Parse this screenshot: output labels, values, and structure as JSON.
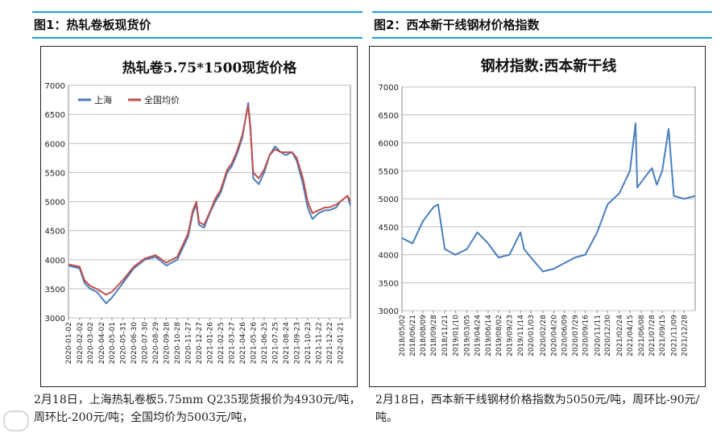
{
  "figures": [
    {
      "label": "图1：热轧卷板现货价",
      "caption": "2月18日，上海热轧卷板5.75mm Q235现货报价为4930元/吨，周环比-200元/吨；全国均价为5003元/吨，"
    },
    {
      "label": "图2：西本新干线钢材价格指数",
      "caption": "2月18日，西本新干线钢材价格指数为5050元/吨，周环比-90元/吨。"
    }
  ],
  "chart_data": [
    {
      "type": "line",
      "title": "热轧卷5.75*1500现货价格",
      "xlabel": "",
      "ylabel": "",
      "ylim": [
        3000,
        7000
      ],
      "yticks": [
        3000,
        3500,
        4000,
        4500,
        5000,
        5500,
        6000,
        6500,
        7000
      ],
      "xticks": [
        "2020-01-02",
        "2020-02-02",
        "2020-03-02",
        "2020-04-02",
        "2020-05-01",
        "2020-05-31",
        "2020-06-30",
        "2020-07-30",
        "2020-08-29",
        "2020-09-28",
        "2020-10-28",
        "2020-11-27",
        "2020-12-27",
        "2021-01-26",
        "2021-02-25",
        "2021-03-27",
        "2021-04-26",
        "2021-05-26",
        "2021-06-25",
        "2021-07-25",
        "2021-08-24",
        "2021-09-23",
        "2021-10-23",
        "2021-11-22",
        "2021-12-22",
        "2022-01-21"
      ],
      "legend": "top-left",
      "grid": "horizontal",
      "series": [
        {
          "name": "上海",
          "color": "#4a7ebb",
          "x": [
            "2020-01-02",
            "2020-02-02",
            "2020-02-15",
            "2020-03-02",
            "2020-03-20",
            "2020-04-02",
            "2020-04-15",
            "2020-05-01",
            "2020-05-31",
            "2020-06-30",
            "2020-07-30",
            "2020-08-29",
            "2020-09-28",
            "2020-10-28",
            "2020-11-27",
            "2020-12-10",
            "2020-12-20",
            "2020-12-27",
            "2021-01-10",
            "2021-01-26",
            "2021-02-10",
            "2021-02-25",
            "2021-03-15",
            "2021-03-27",
            "2021-04-10",
            "2021-04-26",
            "2021-05-12",
            "2021-05-18",
            "2021-05-26",
            "2021-06-10",
            "2021-06-25",
            "2021-07-10",
            "2021-07-25",
            "2021-08-10",
            "2021-08-24",
            "2021-09-10",
            "2021-09-23",
            "2021-10-10",
            "2021-10-23",
            "2021-11-05",
            "2021-11-22",
            "2021-12-10",
            "2021-12-22",
            "2022-01-10",
            "2022-01-21",
            "2022-02-10",
            "2022-02-18"
          ],
          "y": [
            3900,
            3850,
            3600,
            3500,
            3450,
            3350,
            3250,
            3350,
            3600,
            3850,
            4000,
            4050,
            3900,
            4000,
            4400,
            4800,
            4950,
            4600,
            4550,
            4800,
            5000,
            5150,
            5500,
            5600,
            5800,
            6100,
            6700,
            6300,
            5400,
            5300,
            5500,
            5800,
            5950,
            5850,
            5800,
            5850,
            5700,
            5300,
            4900,
            4700,
            4800,
            4850,
            4850,
            4900,
            5000,
            5100,
            4930
          ]
        },
        {
          "name": "全国均价",
          "color": "#c0504d",
          "x": [
            "2020-01-02",
            "2020-02-02",
            "2020-02-15",
            "2020-03-02",
            "2020-03-20",
            "2020-04-02",
            "2020-04-15",
            "2020-05-01",
            "2020-05-31",
            "2020-06-30",
            "2020-07-30",
            "2020-08-29",
            "2020-09-28",
            "2020-10-28",
            "2020-11-27",
            "2020-12-10",
            "2020-12-20",
            "2020-12-27",
            "2021-01-10",
            "2021-01-26",
            "2021-02-10",
            "2021-02-25",
            "2021-03-15",
            "2021-03-27",
            "2021-04-10",
            "2021-04-26",
            "2021-05-12",
            "2021-05-18",
            "2021-05-26",
            "2021-06-10",
            "2021-06-25",
            "2021-07-10",
            "2021-07-25",
            "2021-08-10",
            "2021-08-24",
            "2021-09-10",
            "2021-09-23",
            "2021-10-10",
            "2021-10-23",
            "2021-11-05",
            "2021-11-22",
            "2021-12-10",
            "2021-12-22",
            "2022-01-10",
            "2022-01-21",
            "2022-02-10",
            "2022-02-18"
          ],
          "y": [
            3920,
            3880,
            3650,
            3550,
            3500,
            3450,
            3400,
            3450,
            3650,
            3880,
            4020,
            4080,
            3950,
            4050,
            4450,
            4850,
            5000,
            4650,
            4600,
            4820,
            5050,
            5200,
            5550,
            5650,
            5850,
            6150,
            6650,
            6250,
            5500,
            5400,
            5550,
            5800,
            5900,
            5850,
            5850,
            5850,
            5750,
            5400,
            5000,
            4800,
            4850,
            4900,
            4900,
            4950,
            5000,
            5100,
            5003
          ]
        }
      ]
    },
    {
      "type": "line",
      "title": "钢材指数:西本新干线",
      "xlabel": "",
      "ylabel": "",
      "ylim": [
        3000,
        7000
      ],
      "yticks": [
        3000,
        3500,
        4000,
        4500,
        5000,
        5500,
        6000,
        6500,
        7000
      ],
      "xticks": [
        "2018/05/02",
        "2018/06/21",
        "2018/08/09",
        "2018/09/28",
        "2018/11/21",
        "2019/01/10",
        "2019/03/05",
        "2019/04/24",
        "2019/06/14",
        "2019/08/02",
        "2019/09/23",
        "2019/11/14",
        "2020/01/03",
        "2020/02/28",
        "2020/04/20",
        "2020/06/09",
        "2020/07/29",
        "2020/09/16",
        "2020/11/11",
        "2020/12/30",
        "2021/02/24",
        "2021/04/15",
        "2021/06/08",
        "2021/07/28",
        "2021/09/15",
        "2021/11/09",
        "2021/12/28"
      ],
      "grid": "horizontal",
      "series": [
        {
          "name": "",
          "color": "#4a7ebb",
          "x": [
            "2018/05/02",
            "2018/06/21",
            "2018/08/09",
            "2018/09/28",
            "2018/10/20",
            "2018/11/21",
            "2019/01/10",
            "2019/03/05",
            "2019/04/24",
            "2019/06/14",
            "2019/08/02",
            "2019/09/23",
            "2019/11/14",
            "2019/12/01",
            "2020/01/03",
            "2020/02/28",
            "2020/04/20",
            "2020/06/09",
            "2020/07/29",
            "2020/09/16",
            "2020/11/11",
            "2020/12/30",
            "2021/02/24",
            "2021/04/15",
            "2021/05/12",
            "2021/05/20",
            "2021/06/08",
            "2021/07/28",
            "2021/08/20",
            "2021/09/15",
            "2021/10/15",
            "2021/11/09",
            "2021/12/28",
            "2022/02/18"
          ],
          "y": [
            4300,
            4200,
            4600,
            4850,
            4900,
            4100,
            4000,
            4100,
            4400,
            4200,
            3950,
            4000,
            4400,
            4100,
            3950,
            3700,
            3750,
            3850,
            3950,
            4000,
            4400,
            4900,
            5100,
            5500,
            6350,
            5200,
            5300,
            5550,
            5250,
            5500,
            6250,
            5050,
            5000,
            5050
          ]
        }
      ]
    }
  ]
}
